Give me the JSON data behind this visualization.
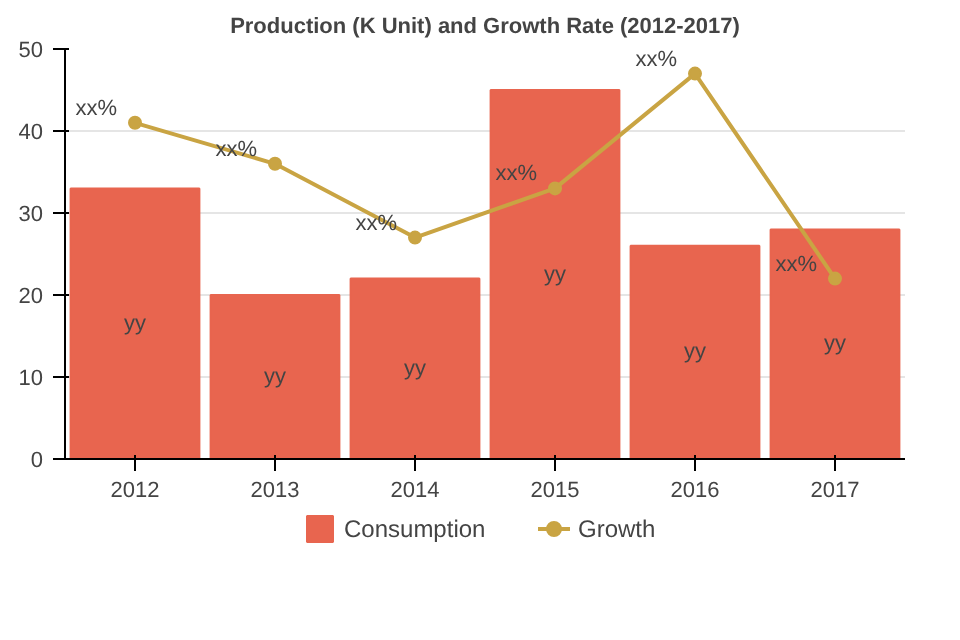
{
  "chart_data": {
    "type": "bar",
    "title": "Production (K Unit) and Growth Rate (2012-2017)",
    "categories": [
      "2012",
      "2013",
      "2014",
      "2015",
      "2016",
      "2017"
    ],
    "series": [
      {
        "name": "Consumption",
        "color": "#e8654f",
        "values": [
          33,
          20,
          22,
          45,
          26,
          28
        ],
        "value_labels": [
          "yy",
          "yy",
          "yy",
          "yy",
          "yy",
          "yy"
        ]
      },
      {
        "name": "Growth",
        "type": "line",
        "color": "#c9a443",
        "values": [
          41,
          36,
          27,
          33,
          47,
          22
        ],
        "value_labels": [
          "xx%",
          "xx%",
          "xx%",
          "xx%",
          "xx%",
          "xx%"
        ],
        "marker": "circle"
      }
    ],
    "ylim": [
      0,
      50
    ],
    "yticks": [
      0,
      10,
      20,
      30,
      40,
      50
    ],
    "grid": "y",
    "legend": "bottom"
  }
}
